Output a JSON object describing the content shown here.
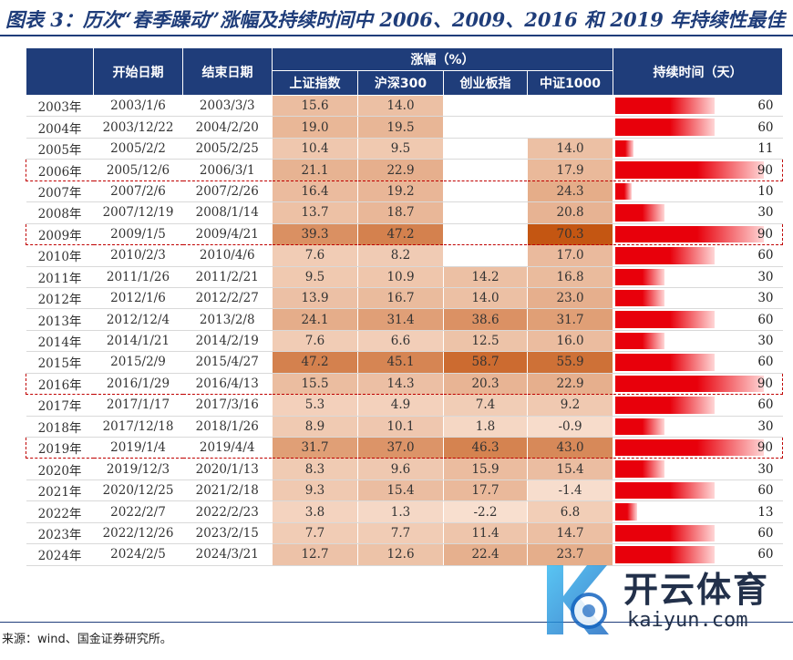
{
  "title": "图表 3：历次“春季躁动”涨幅及持续时间中 2006、2009、2016 和 2019 年持续性最佳",
  "headers": {
    "start": "开始日期",
    "end": "结束日期",
    "gain": "涨幅（%）",
    "idx1": "上证指数",
    "idx2": "沪深300",
    "idx3": "创业板指",
    "idx4": "中证1000",
    "duration": "持续时间（天）"
  },
  "source": "来源：wind、国金证券研究所。",
  "watermark": {
    "cn": "开云体育",
    "en": "kaiyun.com"
  },
  "colors": {
    "header": "#1f3d7a",
    "bar": "#e8000b",
    "highlight_border": "#c00000"
  },
  "rows": [
    {
      "year": "2003年",
      "start": "2003/1/6",
      "end": "2003/3/3",
      "sh": "15.6",
      "hs": "14.0",
      "cy": "",
      "zz": "",
      "days": "60",
      "d": 60,
      "hl": false
    },
    {
      "year": "2004年",
      "start": "2003/12/22",
      "end": "2004/2/20",
      "sh": "19.0",
      "hs": "19.5",
      "cy": "",
      "zz": "",
      "days": "60",
      "d": 60,
      "hl": false
    },
    {
      "year": "2005年",
      "start": "2005/2/2",
      "end": "2005/2/25",
      "sh": "10.4",
      "hs": "9.5",
      "cy": "",
      "zz": "14.0",
      "days": "11",
      "d": 11,
      "hl": false
    },
    {
      "year": "2006年",
      "start": "2005/12/6",
      "end": "2006/3/1",
      "sh": "21.1",
      "hs": "22.9",
      "cy": "",
      "zz": "17.9",
      "days": "90",
      "d": 90,
      "hl": true
    },
    {
      "year": "2007年",
      "start": "2007/2/6",
      "end": "2007/2/26",
      "sh": "16.4",
      "hs": "19.2",
      "cy": "",
      "zz": "24.3",
      "days": "10",
      "d": 10,
      "hl": false
    },
    {
      "year": "2008年",
      "start": "2007/12/19",
      "end": "2008/1/14",
      "sh": "13.7",
      "hs": "18.7",
      "cy": "",
      "zz": "20.8",
      "days": "30",
      "d": 30,
      "hl": false
    },
    {
      "year": "2009年",
      "start": "2009/1/5",
      "end": "2009/4/21",
      "sh": "39.3",
      "hs": "47.2",
      "cy": "",
      "zz": "70.3",
      "days": "90",
      "d": 90,
      "hl": true
    },
    {
      "year": "2010年",
      "start": "2010/2/3",
      "end": "2010/4/6",
      "sh": "7.6",
      "hs": "8.2",
      "cy": "",
      "zz": "17.0",
      "days": "60",
      "d": 60,
      "hl": false
    },
    {
      "year": "2011年",
      "start": "2011/1/26",
      "end": "2011/2/21",
      "sh": "9.5",
      "hs": "10.9",
      "cy": "14.2",
      "zz": "16.8",
      "days": "30",
      "d": 30,
      "hl": false
    },
    {
      "year": "2012年",
      "start": "2012/1/6",
      "end": "2012/2/27",
      "sh": "13.9",
      "hs": "16.7",
      "cy": "14.0",
      "zz": "23.0",
      "days": "30",
      "d": 30,
      "hl": false
    },
    {
      "year": "2013年",
      "start": "2012/12/4",
      "end": "2013/2/8",
      "sh": "24.1",
      "hs": "31.4",
      "cy": "38.6",
      "zz": "31.7",
      "days": "60",
      "d": 60,
      "hl": false
    },
    {
      "year": "2014年",
      "start": "2014/1/21",
      "end": "2014/2/19",
      "sh": "7.6",
      "hs": "6.6",
      "cy": "12.5",
      "zz": "16.0",
      "days": "30",
      "d": 30,
      "hl": false
    },
    {
      "year": "2015年",
      "start": "2015/2/9",
      "end": "2015/4/27",
      "sh": "47.2",
      "hs": "45.1",
      "cy": "58.7",
      "zz": "55.9",
      "days": "60",
      "d": 60,
      "hl": false
    },
    {
      "year": "2016年",
      "start": "2016/1/29",
      "end": "2016/4/13",
      "sh": "15.5",
      "hs": "14.3",
      "cy": "20.3",
      "zz": "22.9",
      "days": "90",
      "d": 90,
      "hl": true
    },
    {
      "year": "2017年",
      "start": "2017/1/17",
      "end": "2017/3/16",
      "sh": "5.3",
      "hs": "4.9",
      "cy": "7.4",
      "zz": "9.2",
      "days": "60",
      "d": 60,
      "hl": false
    },
    {
      "year": "2018年",
      "start": "2017/12/18",
      "end": "2018/1/26",
      "sh": "8.9",
      "hs": "10.1",
      "cy": "1.8",
      "zz": "-0.9",
      "days": "30",
      "d": 30,
      "hl": false
    },
    {
      "year": "2019年",
      "start": "2019/1/4",
      "end": "2019/4/4",
      "sh": "31.7",
      "hs": "37.0",
      "cy": "46.3",
      "zz": "43.0",
      "days": "90",
      "d": 90,
      "hl": true
    },
    {
      "year": "2020年",
      "start": "2019/12/3",
      "end": "2020/1/13",
      "sh": "8.3",
      "hs": "9.6",
      "cy": "15.9",
      "zz": "15.4",
      "days": "30",
      "d": 30,
      "hl": false
    },
    {
      "year": "2021年",
      "start": "2020/12/25",
      "end": "2021/2/18",
      "sh": "9.3",
      "hs": "15.4",
      "cy": "17.7",
      "zz": "-1.4",
      "days": "60",
      "d": 60,
      "hl": false
    },
    {
      "year": "2022年",
      "start": "2022/2/7",
      "end": "2022/2/23",
      "sh": "3.8",
      "hs": "1.3",
      "cy": "-2.2",
      "zz": "6.8",
      "days": "13",
      "d": 13,
      "hl": false
    },
    {
      "year": "2023年",
      "start": "2022/12/26",
      "end": "2023/2/15",
      "sh": "7.7",
      "hs": "7.7",
      "cy": "11.4",
      "zz": "14.7",
      "days": "60",
      "d": 60,
      "hl": false
    },
    {
      "year": "2024年",
      "start": "2024/2/5",
      "end": "2024/3/21",
      "sh": "12.7",
      "hs": "12.6",
      "cy": "22.4",
      "zz": "23.7",
      "days": "60",
      "d": 60,
      "hl": false
    }
  ]
}
